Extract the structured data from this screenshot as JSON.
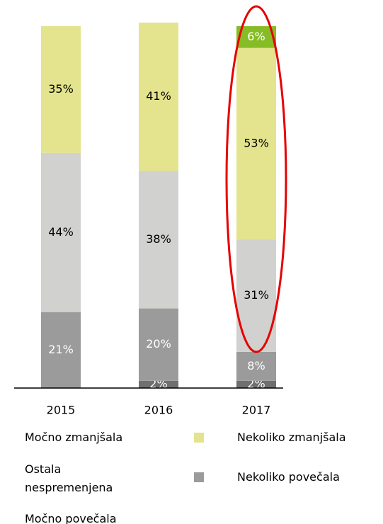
{
  "chart_data": {
    "type": "stacked_bar",
    "categories": [
      "2015",
      "2016",
      "2017"
    ],
    "ylim": [
      0,
      100
    ],
    "series": [
      {
        "name": "Močno povečala",
        "color": "#6f6f6f",
        "label_color": "#ffffff",
        "values": [
          null,
          2,
          2
        ],
        "value_labels": [
          null,
          "2%",
          "2%"
        ]
      },
      {
        "name": "Nekoliko povečala",
        "color": "#9b9b9b",
        "label_color": "#ffffff",
        "values": [
          21,
          20,
          8
        ],
        "value_labels": [
          "21%",
          "20%",
          "8%"
        ]
      },
      {
        "name": "Ostala nespremenjena",
        "color": "#d1d1cf",
        "label_color": "#000000",
        "values": [
          44,
          38,
          31
        ],
        "value_labels": [
          "44%",
          "38%",
          "31%"
        ]
      },
      {
        "name": "Nekoliko zmanjšala",
        "color": "#e3e48d",
        "label_color": "#000000",
        "values": [
          35,
          41,
          53
        ],
        "value_labels": [
          "35%",
          "41%",
          "53%"
        ]
      },
      {
        "name": "Močno zmanjšala",
        "color": "#86bc25",
        "label_color": "#ffffff",
        "values": [
          null,
          null,
          6
        ],
        "value_labels": [
          null,
          null,
          "6%"
        ]
      }
    ]
  }
}
